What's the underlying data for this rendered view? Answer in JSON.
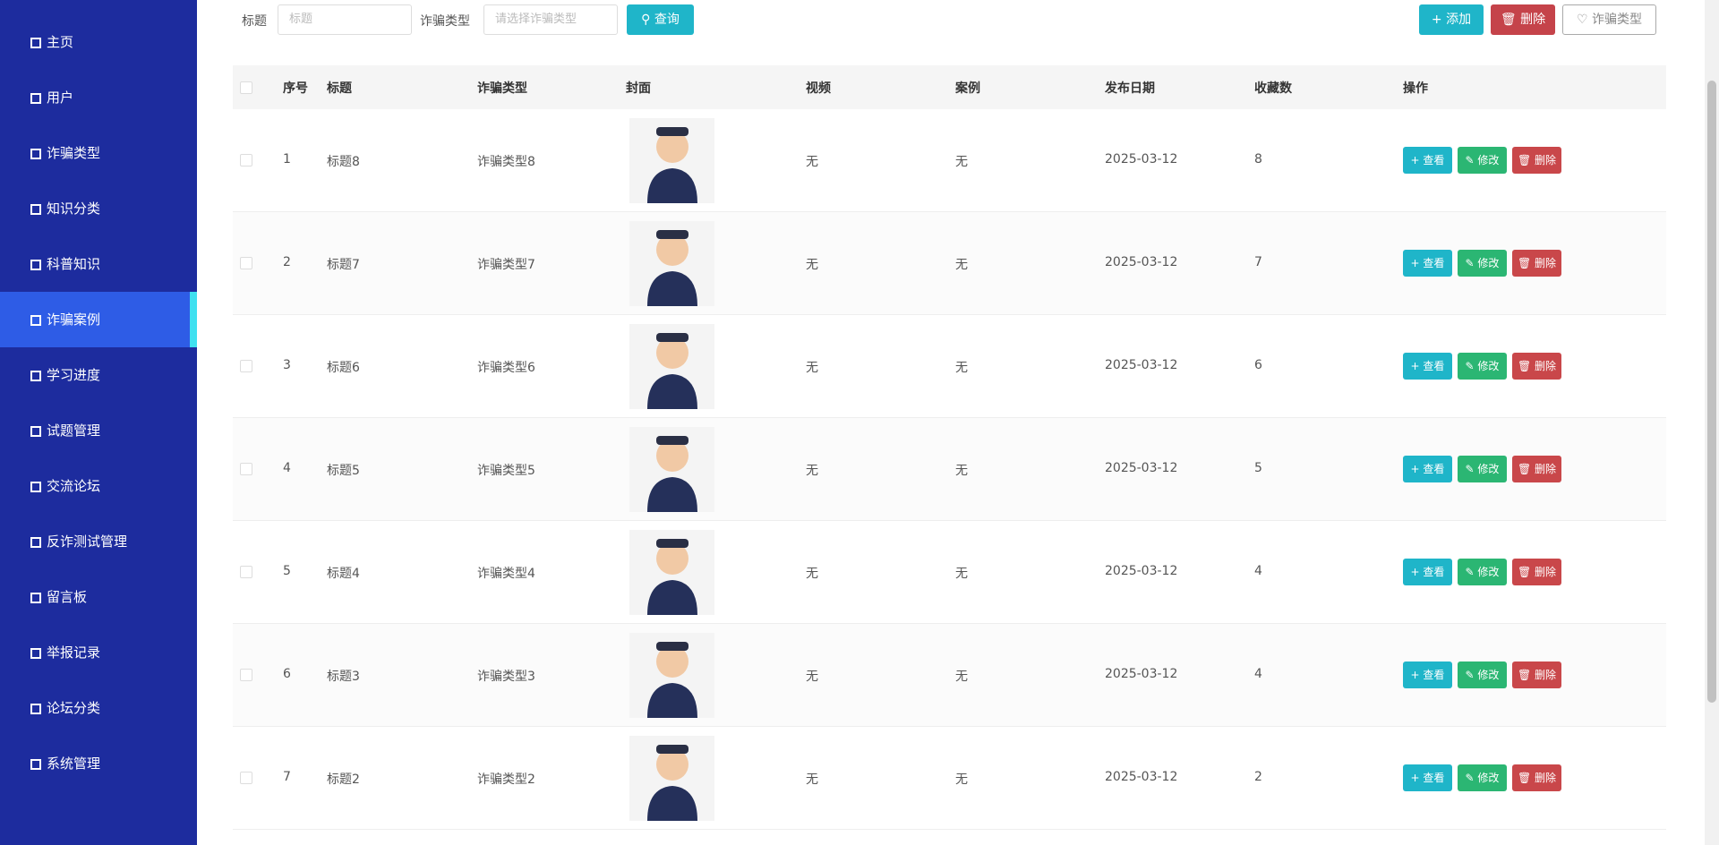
{
  "sidebar": {
    "items": [
      "主页",
      "用户",
      "诈骗类型",
      "知识分类",
      "科普知识",
      "诈骗案例",
      "学习进度",
      "试题管理",
      "交流论坛",
      "反诈测试管理",
      "留言板",
      "举报记录",
      "论坛分类",
      "系统管理"
    ],
    "active": 5
  },
  "toolbar": {
    "title_label": "标题",
    "title_placeholder": "标题",
    "type_label": "诈骗类型",
    "type_placeholder": "请选择诈骗类型",
    "search_button": "查询",
    "add_button": "添加",
    "delete_button": "删除",
    "type_button": "诈骗类型"
  },
  "table": {
    "headers": [
      "序号",
      "标题",
      "诈骗类型",
      "封面",
      "视频",
      "案例",
      "发布日期",
      "收藏数",
      "操作"
    ],
    "rows": [
      [
        "1",
        "标题8",
        "诈骗类型8",
        "无",
        "无",
        "2025-03-12",
        "8"
      ],
      [
        "2",
        "标题7",
        "诈骗类型7",
        "无",
        "无",
        "2025-03-12",
        "7"
      ],
      [
        "3",
        "标题6",
        "诈骗类型6",
        "无",
        "无",
        "2025-03-12",
        "6"
      ],
      [
        "4",
        "标题5",
        "诈骗类型5",
        "无",
        "无",
        "2025-03-12",
        "5"
      ],
      [
        "5",
        "标题4",
        "诈骗类型4",
        "无",
        "无",
        "2025-03-12",
        "4"
      ],
      [
        "6",
        "标题3",
        "诈骗类型3",
        "无",
        "无",
        "2025-03-12",
        "4"
      ],
      [
        "7",
        "标题2",
        "诈骗类型2",
        "无",
        "无",
        "2025-03-12",
        "2"
      ]
    ],
    "actions": [
      "查看",
      "修改",
      "删除"
    ]
  }
}
